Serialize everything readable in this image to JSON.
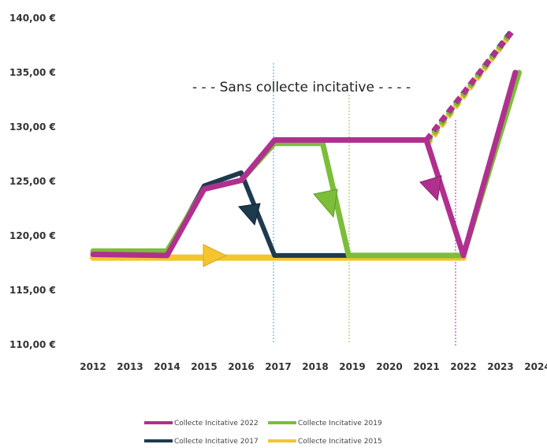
{
  "chart_data": {
    "type": "line",
    "title": "",
    "xlabel": "",
    "ylabel": "",
    "x": [
      2012,
      2013,
      2014,
      2015,
      2016,
      2017,
      2018,
      2019,
      2020,
      2021,
      2022,
      2023,
      2024
    ],
    "ylim": [
      110,
      140
    ],
    "yticks": [
      "110,00 €",
      "115,00 €",
      "120,00 €",
      "125,00 €",
      "130,00 €",
      "135,00 €",
      "140,00 €"
    ],
    "ytick_values": [
      110,
      115,
      120,
      125,
      130,
      135,
      140
    ],
    "grid": false,
    "legend_position": "bottom",
    "annotation": "- - - Sans collecte incitative - - - -",
    "series": [
      {
        "name": "Collecte Incitative 2022",
        "color": "#b0308f",
        "points": [
          [
            2012,
            118.3
          ],
          [
            2014,
            118.2
          ],
          [
            2015,
            124.3
          ],
          [
            2016,
            125.1
          ],
          [
            2016.9,
            128.8
          ],
          [
            2021,
            128.8
          ],
          [
            2022,
            118.2
          ],
          [
            2023.4,
            135
          ]
        ],
        "dashed_points": [
          [
            2021,
            128.8
          ],
          [
            2023.3,
            138.7
          ]
        ]
      },
      {
        "name": "Collecte Incitative 2019",
        "color": "#7cbd3a",
        "points": [
          [
            2012,
            118.6
          ],
          [
            2014,
            118.6
          ],
          [
            2015,
            124.3
          ],
          [
            2016,
            125.1
          ],
          [
            2016.9,
            128.5
          ],
          [
            2018.2,
            128.5
          ],
          [
            2018.9,
            118.2
          ],
          [
            2022,
            118.2
          ],
          [
            2023.5,
            135
          ]
        ],
        "dashed_points": [
          [
            2021,
            128.5
          ],
          [
            2023.2,
            138.3
          ]
        ]
      },
      {
        "name": "Collecte Incitative 2017",
        "color": "#1e3a4f",
        "points": [
          [
            2012,
            118.4
          ],
          [
            2014,
            118.4
          ],
          [
            2015,
            124.6
          ],
          [
            2016,
            125.8
          ],
          [
            2016.9,
            118.2
          ],
          [
            2022,
            118.2
          ],
          [
            2023.4,
            135
          ]
        ],
        "dashed_points": [
          [
            2021,
            128.7
          ],
          [
            2023.3,
            138.8
          ]
        ]
      },
      {
        "name": "Collecte Incitative 2015",
        "color": "#f4c52e",
        "points": [
          [
            2012,
            118.0
          ],
          [
            2022,
            118.0
          ]
        ],
        "dashed_points": [
          [
            2021,
            128.3
          ],
          [
            2023.2,
            138.2
          ]
        ]
      }
    ]
  }
}
